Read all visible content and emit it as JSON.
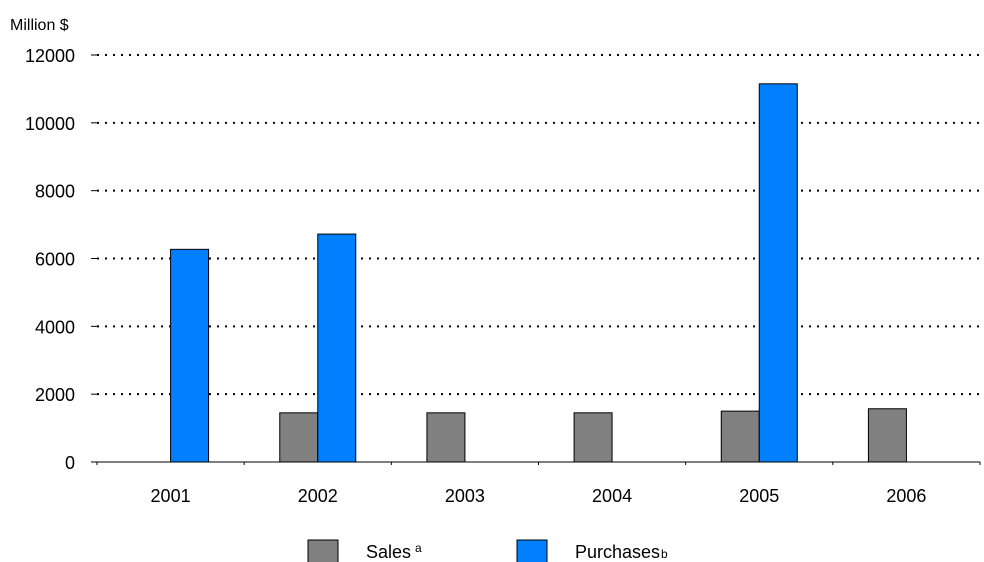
{
  "chart_data": {
    "type": "bar",
    "ylabel": "Million $",
    "ylim": [
      0,
      12000
    ],
    "yticks": [
      0,
      2000,
      4000,
      6000,
      8000,
      10000,
      12000
    ],
    "grid": "horizontal dotted",
    "legend_position": "bottom",
    "categories": [
      "2001",
      "2002",
      "2003",
      "2004",
      "2005",
      "2006"
    ],
    "series": [
      {
        "name": "Sales",
        "superscript": "a",
        "color": "#808080",
        "values": [
          null,
          1450,
          1450,
          1450,
          1500,
          1570
        ]
      },
      {
        "name": "Purchases",
        "superscript": "b",
        "color": "#0080ff",
        "values": [
          6270,
          6720,
          null,
          null,
          11150,
          null
        ]
      }
    ]
  }
}
